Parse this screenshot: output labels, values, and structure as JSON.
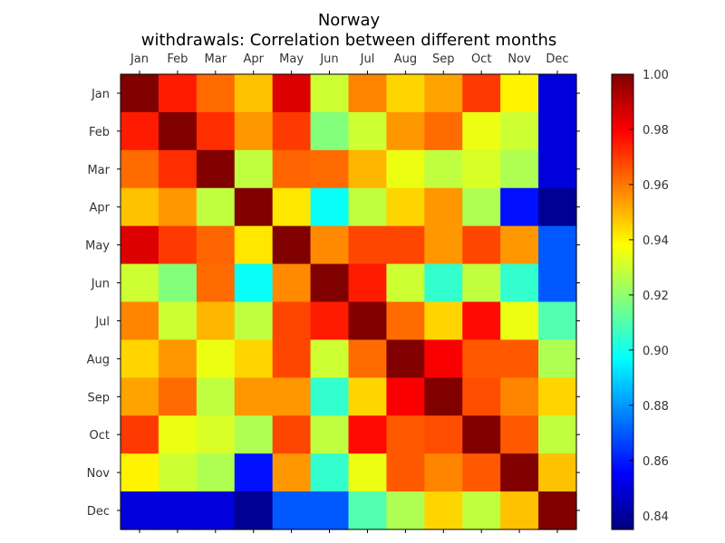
{
  "chart_data": {
    "type": "heatmap",
    "title": "Norway",
    "subtitle": "withdrawals: Correlation between different months",
    "categories": [
      "Jan",
      "Feb",
      "Mar",
      "Apr",
      "May",
      "Jun",
      "Jul",
      "Aug",
      "Sep",
      "Oct",
      "Nov",
      "Dec"
    ],
    "x_ticks_position": "top-and-bottom",
    "grid": false,
    "colormap": "jet",
    "colorbar": {
      "position": "right",
      "range": [
        0.835,
        1.0
      ],
      "ticks": [
        "0.84",
        "0.86",
        "0.88",
        "0.90",
        "0.92",
        "0.94",
        "0.96",
        "0.98",
        "1.00"
      ]
    },
    "values": [
      [
        1.0,
        0.975,
        0.962,
        0.948,
        0.985,
        0.93,
        0.958,
        0.945,
        0.953,
        0.97,
        0.94,
        0.85
      ],
      [
        0.975,
        1.0,
        0.972,
        0.955,
        0.97,
        0.918,
        0.93,
        0.955,
        0.962,
        0.935,
        0.93,
        0.85
      ],
      [
        0.962,
        0.972,
        1.0,
        0.928,
        0.963,
        0.962,
        0.95,
        0.935,
        0.928,
        0.932,
        0.925,
        0.85
      ],
      [
        0.948,
        0.955,
        0.928,
        1.0,
        0.942,
        0.898,
        0.928,
        0.945,
        0.955,
        0.925,
        0.858,
        0.838
      ],
      [
        0.985,
        0.97,
        0.963,
        0.942,
        1.0,
        0.957,
        0.968,
        0.968,
        0.955,
        0.968,
        0.955,
        0.87
      ],
      [
        0.93,
        0.918,
        0.962,
        0.898,
        0.957,
        1.0,
        0.975,
        0.93,
        0.905,
        0.928,
        0.905,
        0.87
      ],
      [
        0.958,
        0.93,
        0.95,
        0.928,
        0.968,
        0.975,
        1.0,
        0.962,
        0.945,
        0.978,
        0.935,
        0.91
      ],
      [
        0.945,
        0.955,
        0.935,
        0.945,
        0.968,
        0.93,
        0.962,
        1.0,
        0.98,
        0.965,
        0.965,
        0.925
      ],
      [
        0.953,
        0.962,
        0.928,
        0.955,
        0.955,
        0.905,
        0.945,
        0.98,
        1.0,
        0.967,
        0.958,
        0.945
      ],
      [
        0.97,
        0.935,
        0.932,
        0.925,
        0.968,
        0.928,
        0.978,
        0.965,
        0.967,
        1.0,
        0.965,
        0.928
      ],
      [
        0.94,
        0.93,
        0.925,
        0.858,
        0.955,
        0.905,
        0.935,
        0.965,
        0.958,
        0.965,
        1.0,
        0.948
      ],
      [
        0.85,
        0.85,
        0.85,
        0.838,
        0.87,
        0.87,
        0.91,
        0.925,
        0.945,
        0.928,
        0.948,
        1.0
      ]
    ]
  }
}
